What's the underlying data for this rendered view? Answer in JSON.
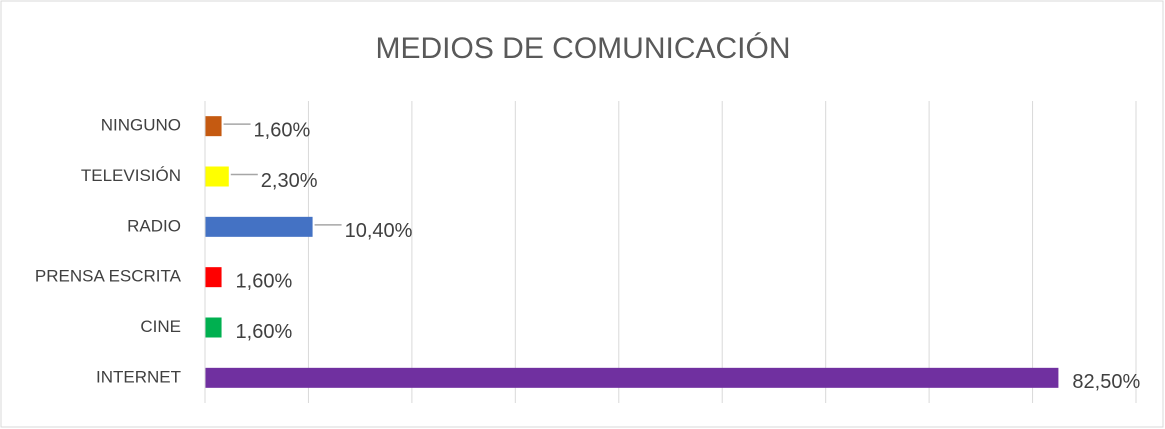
{
  "chart_data": {
    "type": "barh",
    "title": "MEDIOS DE COMUNICACIÓN",
    "categories": [
      "NINGUNO",
      "TELEVISIÓN",
      "RADIO",
      "PRENSA ESCRITA",
      "CINE",
      "INTERNET"
    ],
    "values": [
      1.6,
      2.3,
      10.4,
      1.6,
      1.6,
      82.5
    ],
    "value_labels": [
      "1,60%",
      "2,30%",
      "10,40%",
      "1,60%",
      "1,60%",
      "82,50%"
    ],
    "colors": [
      "#c55a11",
      "#ffff00",
      "#4472c4",
      "#ff0000",
      "#00b050",
      "#7030a0"
    ],
    "xlim": [
      0,
      90
    ],
    "xticks": [
      0,
      10,
      20,
      30,
      40,
      50,
      60,
      70,
      80,
      90
    ],
    "grid": true
  }
}
